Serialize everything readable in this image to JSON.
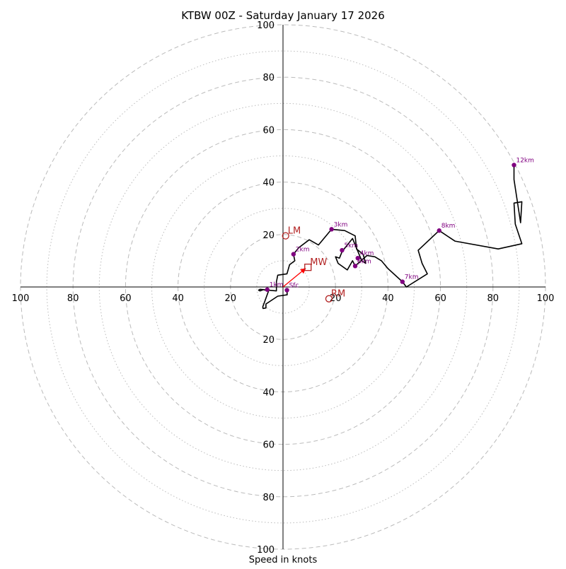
{
  "chart_data": {
    "type": "hodograph",
    "title": "KTBW 00Z - Saturday January 17 2026",
    "xlabel": "Speed in knots",
    "axis_range": [
      -100,
      100
    ],
    "ring_major": [
      20,
      40,
      60,
      80,
      100
    ],
    "ring_minor": [
      10,
      30,
      50,
      70,
      90
    ],
    "tick_values": [
      100,
      80,
      60,
      40,
      20
    ],
    "hodograph_trace": [
      [
        1.5,
        -1.2
      ],
      [
        1.6,
        -3.0
      ],
      [
        -2.0,
        -3.5
      ],
      [
        -6.5,
        -6.5
      ],
      [
        -6.5,
        -8.0
      ],
      [
        -7.6,
        -8.2
      ],
      [
        -7.7,
        -7.6
      ],
      [
        -5.5,
        -1.5
      ],
      [
        -7.5,
        -1.0
      ],
      [
        -8.8,
        -1.5
      ],
      [
        -9.3,
        -1.2
      ],
      [
        -8.8,
        -0.9
      ],
      [
        -2.5,
        -1.5
      ],
      [
        -2.5,
        2.0
      ],
      [
        -2.0,
        4.5
      ],
      [
        1.5,
        5.0
      ],
      [
        2.5,
        8.5
      ],
      [
        4.5,
        10.0
      ],
      [
        4.0,
        12.5
      ],
      [
        6.0,
        15.0
      ],
      [
        10.0,
        18.0
      ],
      [
        13.5,
        16.0
      ],
      [
        18.5,
        22.0
      ],
      [
        23.5,
        21.5
      ],
      [
        27.5,
        19.5
      ],
      [
        28.0,
        14.5
      ],
      [
        30.5,
        12.5
      ],
      [
        31.5,
        9.0
      ],
      [
        30.0,
        10.0
      ],
      [
        26.5,
        18.5
      ],
      [
        22.5,
        13.5
      ],
      [
        21.5,
        11.0
      ],
      [
        20.0,
        11.5
      ],
      [
        21.0,
        9.0
      ],
      [
        24.5,
        6.5
      ],
      [
        26.5,
        10.0
      ],
      [
        27.5,
        8.0
      ],
      [
        32.0,
        12.0
      ],
      [
        35.0,
        11.5
      ],
      [
        37.5,
        10.0
      ],
      [
        40.0,
        7.0
      ],
      [
        45.5,
        2.0
      ],
      [
        47.0,
        0.0
      ],
      [
        55.0,
        5.0
      ],
      [
        53.0,
        9.0
      ],
      [
        51.5,
        14.0
      ],
      [
        59.5,
        21.5
      ],
      [
        65.5,
        17.5
      ],
      [
        82.0,
        14.5
      ],
      [
        91.0,
        16.5
      ],
      [
        88.5,
        24.0
      ],
      [
        88.0,
        32.0
      ],
      [
        91.0,
        32.5
      ],
      [
        90.5,
        24.5
      ],
      [
        88.0,
        41.0
      ],
      [
        88.0,
        46.5
      ]
    ],
    "height_points": [
      {
        "label": "Sfc",
        "u": 1.5,
        "v": -1.2
      },
      {
        "label": "1km",
        "u": -6.0,
        "v": -1.0
      },
      {
        "label": "2km",
        "u": 4.0,
        "v": 12.5
      },
      {
        "label": "3km",
        "u": 18.5,
        "v": 22.0
      },
      {
        "label": "4km",
        "u": 28.5,
        "v": 11.0
      },
      {
        "label": "5km",
        "u": 22.5,
        "v": 14.0
      },
      {
        "label": "6km",
        "u": 27.5,
        "v": 8.0
      },
      {
        "label": "7km",
        "u": 45.5,
        "v": 2.0
      },
      {
        "label": "8km",
        "u": 59.5,
        "v": 21.5
      },
      {
        "label": "12km",
        "u": 88.0,
        "v": 46.5
      }
    ],
    "markers": [
      {
        "label": "LM",
        "u": 1.0,
        "v": 19.5,
        "shape": "circle"
      },
      {
        "label": "MW",
        "u": 9.5,
        "v": 7.5,
        "shape": "square"
      },
      {
        "label": "RM",
        "u": 17.5,
        "v": -4.5,
        "shape": "circle"
      }
    ],
    "shear_vector": {
      "from": [
        0,
        0
      ],
      "to": [
        8.5,
        7.0
      ]
    },
    "colors": {
      "trace": "#000000",
      "height_marker": "#800080",
      "motion_marker": "#b22222",
      "shear_arrow": "#ff0000",
      "grid": "#bbbbbb",
      "axes": "#000000"
    }
  }
}
